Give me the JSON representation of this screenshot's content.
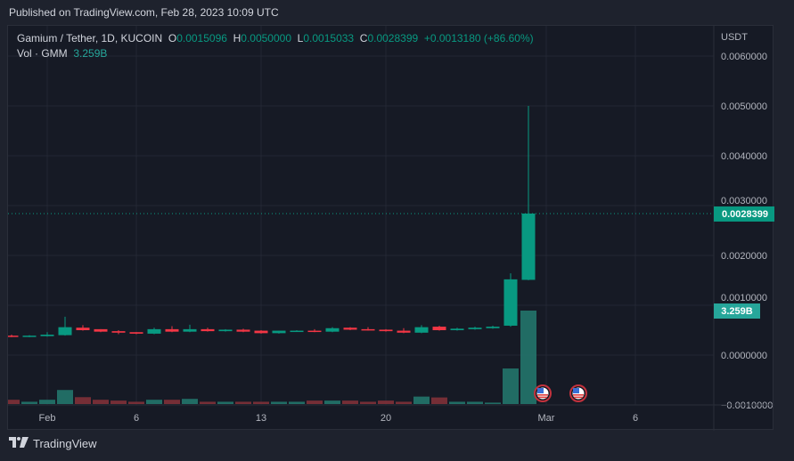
{
  "header": {
    "published": "Published on TradingView.com, Feb 28, 2023 10:09 UTC"
  },
  "legend": {
    "symbol": "Gamium / Tether, 1D, KUCOIN",
    "o_label": "O",
    "o": "0.0015096",
    "h_label": "H",
    "h": "0.0050000",
    "l_label": "L",
    "l": "0.0015033",
    "c_label": "C",
    "c": "0.0028399",
    "change": "+0.0013180 (+86.60%)",
    "vol_label": "Vol · GMM",
    "vol": "3.259B"
  },
  "footer": {
    "brand": "TradingView",
    "logo_text": "17"
  },
  "colors": {
    "up": "#089981",
    "down": "#f23645",
    "vol_up": "#22756b",
    "vol_down": "#7f3138",
    "label_vol": "#26a69a"
  },
  "chart_data": {
    "type": "candlestick",
    "currency": "USDT",
    "ylim": [
      -0.001,
      0.0062
    ],
    "y_ticks": [
      "0.0060000",
      "0.0050000",
      "0.0040000",
      "0.0030000",
      "0.0020000",
      "0.0010000",
      "0.0000000",
      "−0.0010000"
    ],
    "y_tick_values": [
      0.006,
      0.005,
      0.004,
      0.003,
      0.002,
      0.001,
      0,
      -0.001
    ],
    "x_ticks": [
      {
        "label": "Feb",
        "date": "2023-02-01"
      },
      {
        "label": "6",
        "date": "2023-02-06"
      },
      {
        "label": "13",
        "date": "2023-02-13"
      },
      {
        "label": "20",
        "date": "2023-02-20"
      },
      {
        "label": "Mar",
        "date": "2023-03-01"
      },
      {
        "label": "6",
        "date": "2023-03-06"
      }
    ],
    "last_price_label": "0.0028399",
    "last_price": 0.0028399,
    "volume_label": "3.259B",
    "volume_unit": "B",
    "events": [
      "2023-03-01",
      "2023-03-03"
    ],
    "candles": [
      {
        "date": "2023-01-30",
        "o": 0.00039,
        "h": 0.00041,
        "l": 0.00036,
        "c": 0.00037,
        "v": 0.15
      },
      {
        "date": "2023-01-31",
        "o": 0.00037,
        "h": 0.0004,
        "l": 0.00036,
        "c": 0.00039,
        "v": 0.08
      },
      {
        "date": "2023-02-01",
        "o": 0.00038,
        "h": 0.00046,
        "l": 0.00037,
        "c": 0.00041,
        "v": 0.15
      },
      {
        "date": "2023-02-02",
        "o": 0.0004,
        "h": 0.00077,
        "l": 0.00039,
        "c": 0.00056,
        "v": 0.49
      },
      {
        "date": "2023-02-03",
        "o": 0.00055,
        "h": 0.0006,
        "l": 0.00049,
        "c": 0.0005,
        "v": 0.24
      },
      {
        "date": "2023-02-04",
        "o": 0.00052,
        "h": 0.00052,
        "l": 0.00046,
        "c": 0.00047,
        "v": 0.15
      },
      {
        "date": "2023-02-05",
        "o": 0.00048,
        "h": 0.0005,
        "l": 0.00042,
        "c": 0.00045,
        "v": 0.12
      },
      {
        "date": "2023-02-06",
        "o": 0.00046,
        "h": 0.00046,
        "l": 0.00042,
        "c": 0.00043,
        "v": 0.08
      },
      {
        "date": "2023-02-07",
        "o": 0.00043,
        "h": 0.00055,
        "l": 0.00042,
        "c": 0.00052,
        "v": 0.15
      },
      {
        "date": "2023-02-08",
        "o": 0.00052,
        "h": 0.00058,
        "l": 0.00046,
        "c": 0.00047,
        "v": 0.15
      },
      {
        "date": "2023-02-09",
        "o": 0.00047,
        "h": 0.00061,
        "l": 0.00046,
        "c": 0.00052,
        "v": 0.18
      },
      {
        "date": "2023-02-10",
        "o": 0.00052,
        "h": 0.00055,
        "l": 0.00047,
        "c": 0.00048,
        "v": 0.08
      },
      {
        "date": "2023-02-11",
        "o": 0.00048,
        "h": 0.00052,
        "l": 0.00047,
        "c": 0.00051,
        "v": 0.08
      },
      {
        "date": "2023-02-12",
        "o": 0.00051,
        "h": 0.00053,
        "l": 0.00046,
        "c": 0.00047,
        "v": 0.08
      },
      {
        "date": "2023-02-13",
        "o": 0.00049,
        "h": 0.0005,
        "l": 0.00043,
        "c": 0.00044,
        "v": 0.08
      },
      {
        "date": "2023-02-14",
        "o": 0.00044,
        "h": 0.00049,
        "l": 0.00043,
        "c": 0.00049,
        "v": 0.08
      },
      {
        "date": "2023-02-15",
        "o": 0.00048,
        "h": 0.0005,
        "l": 0.00047,
        "c": 0.00049,
        "v": 0.08
      },
      {
        "date": "2023-02-16",
        "o": 0.00049,
        "h": 0.00052,
        "l": 0.00046,
        "c": 0.00047,
        "v": 0.12
      },
      {
        "date": "2023-02-17",
        "o": 0.00047,
        "h": 0.00056,
        "l": 0.00046,
        "c": 0.00054,
        "v": 0.12
      },
      {
        "date": "2023-02-18",
        "o": 0.00055,
        "h": 0.00056,
        "l": 0.0005,
        "c": 0.00051,
        "v": 0.12
      },
      {
        "date": "2023-02-19",
        "o": 0.00052,
        "h": 0.00056,
        "l": 0.00049,
        "c": 0.0005,
        "v": 0.08
      },
      {
        "date": "2023-02-20",
        "o": 0.00051,
        "h": 0.00052,
        "l": 0.00047,
        "c": 0.00048,
        "v": 0.12
      },
      {
        "date": "2023-02-21",
        "o": 0.00049,
        "h": 0.00054,
        "l": 0.00044,
        "c": 0.00045,
        "v": 0.08
      },
      {
        "date": "2023-02-22",
        "o": 0.00045,
        "h": 0.0006,
        "l": 0.00044,
        "c": 0.00056,
        "v": 0.26
      },
      {
        "date": "2023-02-23",
        "o": 0.00057,
        "h": 0.00059,
        "l": 0.00049,
        "c": 0.0005,
        "v": 0.23
      },
      {
        "date": "2023-02-24",
        "o": 0.0005,
        "h": 0.00055,
        "l": 0.00049,
        "c": 0.00053,
        "v": 0.08
      },
      {
        "date": "2023-02-25",
        "o": 0.00052,
        "h": 0.00057,
        "l": 0.00051,
        "c": 0.00055,
        "v": 0.08
      },
      {
        "date": "2023-02-26",
        "o": 0.00054,
        "h": 0.00059,
        "l": 0.00053,
        "c": 0.00057,
        "v": 0.05
      },
      {
        "date": "2023-02-27",
        "o": 0.00059,
        "h": 0.00164,
        "l": 0.00057,
        "c": 0.00152,
        "v": 1.24
      },
      {
        "date": "2023-02-28",
        "o": 0.0015096,
        "h": 0.005,
        "l": 0.0015033,
        "c": 0.0028399,
        "v": 3.259
      }
    ]
  }
}
